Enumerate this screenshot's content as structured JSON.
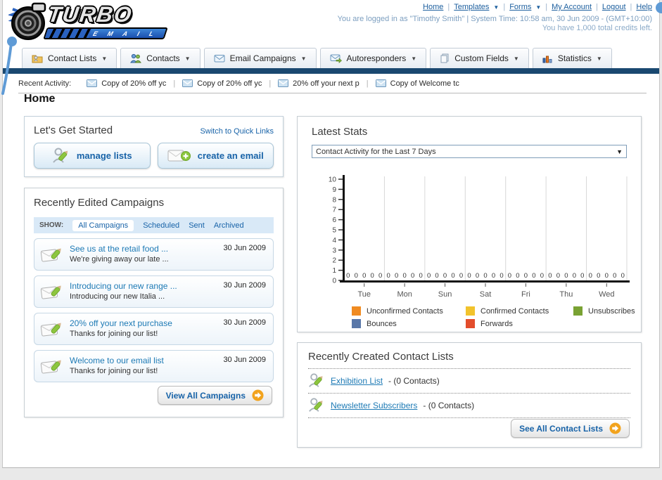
{
  "ui": {
    "separator": "|",
    "annotation_color": "#5f9bd6",
    "header": {
      "logo_title": "TURBO",
      "logo_subtitle": "E M A I L",
      "links": [
        {
          "label": "Home"
        },
        {
          "label": "Templates",
          "dropdown": true
        },
        {
          "label": "Forms",
          "dropdown": true
        },
        {
          "label": "My Account"
        },
        {
          "label": "Logout"
        },
        {
          "label": "Help"
        }
      ],
      "login_text": "You are logged in as \"Timothy Smith\" | System Time: 10:58 am, 30 Jun 2009 - (GMT+10:00)",
      "credits_text": "You have 1,000 total credits left."
    },
    "nav_tabs": [
      {
        "label": "Contact Lists",
        "icon": "contact-lists-folder-icon"
      },
      {
        "label": "Contacts",
        "icon": "contacts-people-icon"
      },
      {
        "label": "Email Campaigns",
        "icon": "email-envelope-icon"
      },
      {
        "label": "Autoresponders",
        "icon": "autoresponder-envelope-icon"
      },
      {
        "label": "Custom Fields",
        "icon": "custom-fields-pages-icon"
      },
      {
        "label": "Statistics",
        "icon": "statistics-chart-icon"
      }
    ],
    "recent_activity": {
      "label": "Recent Activity:",
      "items": [
        {
          "label": "Copy of 20% off yc"
        },
        {
          "label": "Copy of 20% off yc"
        },
        {
          "label": "20% off your next p"
        },
        {
          "label": "Copy of Welcome tc"
        }
      ]
    },
    "page_title": "Home",
    "get_started": {
      "title": "Let's Get Started",
      "switch_link": "Switch to Quick Links",
      "manage_lists_label": "manage lists",
      "create_email_label": "create an email"
    },
    "campaigns": {
      "title": "Recently Edited Campaigns",
      "show_label": "SHOW:",
      "filters": [
        {
          "label": "All Campaigns",
          "selected": true
        },
        {
          "label": "Scheduled",
          "selected": false
        },
        {
          "label": "Sent",
          "selected": false
        },
        {
          "label": "Archived",
          "selected": false
        }
      ],
      "items": [
        {
          "title": "See us at the retail food ...",
          "subtitle": "We're giving away our late ...",
          "date": "30 Jun 2009"
        },
        {
          "title": "Introducing our new range ...",
          "subtitle": "Introducing our new Italia ...",
          "date": "30 Jun 2009"
        },
        {
          "title": "20% off your next purchase",
          "subtitle": "Thanks for joining our list!",
          "date": "30 Jun 2009"
        },
        {
          "title": "Welcome to our email list",
          "subtitle": "Thanks for joining our list!",
          "date": "30 Jun 2009"
        }
      ],
      "view_all_label": "View All Campaigns"
    },
    "stats": {
      "title": "Latest Stats",
      "dropdown_value": "Contact Activity for the Last 7 Days"
    },
    "contact_lists": {
      "title": "Recently Created Contact Lists",
      "items": [
        {
          "name": "Exhibition List",
          "suffix": "- (0 Contacts)"
        },
        {
          "name": "Newsletter Subscribers",
          "suffix": "- (0 Contacts)"
        }
      ],
      "see_all_label": "See All Contact Lists"
    }
  },
  "chart_data": {
    "type": "bar",
    "title": "Contact Activity for the Last 7 Days",
    "categories": [
      "Tue",
      "Mon",
      "Sun",
      "Sat",
      "Fri",
      "Thu",
      "Wed"
    ],
    "series": [
      {
        "name": "Unconfirmed Contacts",
        "color": "#f08b22",
        "values": [
          0,
          0,
          0,
          0,
          0,
          0,
          0
        ]
      },
      {
        "name": "Confirmed Contacts",
        "color": "#f2c32c",
        "values": [
          0,
          0,
          0,
          0,
          0,
          0,
          0
        ]
      },
      {
        "name": "Unsubscribes",
        "color": "#79a233",
        "values": [
          0,
          0,
          0,
          0,
          0,
          0,
          0
        ]
      },
      {
        "name": "Bounces",
        "color": "#5977a8",
        "values": [
          0,
          0,
          0,
          0,
          0,
          0,
          0
        ]
      },
      {
        "name": "Forwards",
        "color": "#e34d2c",
        "values": [
          0,
          0,
          0,
          0,
          0,
          0,
          0
        ]
      }
    ],
    "xlabel": "",
    "ylabel": "",
    "ylim": [
      0,
      10
    ],
    "yticks": [
      0,
      1,
      2,
      3,
      4,
      5,
      6,
      7,
      8,
      9,
      10
    ],
    "grid": "vertical-only",
    "legend_position": "bottom",
    "value_labels": "each series shows 0 above baseline for every day"
  }
}
